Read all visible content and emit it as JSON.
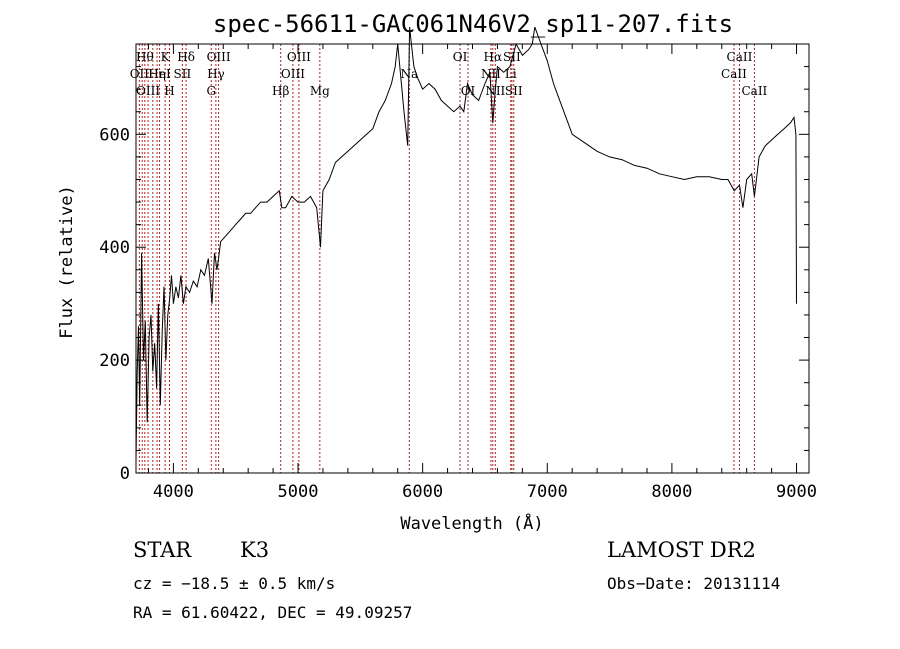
{
  "chart_data": {
    "type": "line",
    "title": "spec-56611-GAC061N46V2_sp11-207.fits",
    "xlabel": "Wavelength (Å)",
    "ylabel": "Flux (relative)",
    "xlim": [
      3700,
      9100
    ],
    "ylim": [
      0,
      760
    ],
    "xticks": [
      4000,
      5000,
      6000,
      7000,
      8000,
      9000
    ],
    "yticks": [
      0,
      200,
      400,
      600
    ],
    "grid": false,
    "series": [
      {
        "x": [
          3700,
          3710,
          3720,
          3730,
          3745,
          3760,
          3775,
          3790,
          3805,
          3820,
          3835,
          3850,
          3865,
          3880,
          3895,
          3910,
          3925,
          3940,
          3955,
          3970,
          3985,
          4000,
          4020,
          4040,
          4060,
          4080,
          4100,
          4130,
          4160,
          4190,
          4220,
          4250,
          4280,
          4310,
          4330,
          4350,
          4380,
          4420,
          4460,
          4500,
          4540,
          4580,
          4620,
          4660,
          4700,
          4750,
          4800,
          4850,
          4870,
          4900,
          4950,
          5000,
          5050,
          5100,
          5150,
          5180,
          5200,
          5250,
          5300,
          5350,
          5400,
          5450,
          5500,
          5550,
          5600,
          5650,
          5700,
          5750,
          5780,
          5800,
          5850,
          5880,
          5895,
          5910,
          5930,
          5960,
          6000,
          6050,
          6100,
          6150,
          6200,
          6250,
          6300,
          6330,
          6360,
          6400,
          6450,
          6500,
          6540,
          6563,
          6580,
          6600,
          6650,
          6700,
          6750,
          6800,
          6850,
          6880,
          6900,
          6950,
          7000,
          7050,
          7100,
          7150,
          7200,
          7300,
          7400,
          7500,
          7600,
          7700,
          7800,
          7900,
          8000,
          8100,
          8200,
          8300,
          8400,
          8450,
          8500,
          8542,
          8570,
          8600,
          8640,
          8662,
          8700,
          8750,
          8800,
          8850,
          8900,
          8950,
          8980,
          8995,
          9000
        ],
        "y": [
          20,
          180,
          260,
          120,
          390,
          200,
          270,
          90,
          240,
          280,
          180,
          230,
          150,
          300,
          120,
          250,
          330,
          200,
          280,
          310,
          350,
          300,
          330,
          310,
          350,
          300,
          330,
          320,
          340,
          330,
          360,
          350,
          380,
          300,
          390,
          360,
          410,
          420,
          430,
          440,
          450,
          460,
          460,
          470,
          480,
          480,
          490,
          500,
          470,
          470,
          490,
          480,
          480,
          490,
          470,
          400,
          500,
          520,
          550,
          560,
          570,
          580,
          590,
          600,
          610,
          640,
          660,
          690,
          720,
          760,
          640,
          580,
          790,
          760,
          720,
          700,
          680,
          690,
          680,
          660,
          650,
          640,
          650,
          640,
          690,
          670,
          660,
          690,
          710,
          620,
          670,
          720,
          710,
          720,
          760,
          740,
          750,
          760,
          790,
          760,
          730,
          690,
          660,
          630,
          600,
          585,
          570,
          560,
          555,
          545,
          540,
          530,
          525,
          520,
          525,
          525,
          520,
          520,
          500,
          510,
          470,
          520,
          530,
          490,
          560,
          580,
          590,
          600,
          610,
          620,
          630,
          600,
          300
        ]
      }
    ],
    "lines": [
      {
        "wl": 3727,
        "lbl": "OII",
        "row": 1
      },
      {
        "wl": 3750,
        "lbl": "",
        "row": -1
      },
      {
        "wl": 3771,
        "lbl": "Hθ",
        "row": 0
      },
      {
        "wl": 3797,
        "lbl": "OIII",
        "row": 2
      },
      {
        "wl": 3835,
        "lbl": "",
        "row": -1
      },
      {
        "wl": 3869,
        "lbl": "Hη",
        "row": 1
      },
      {
        "wl": 3889,
        "lbl": "HeI",
        "row": 1
      },
      {
        "wl": 3934,
        "lbl": "K",
        "row": 0
      },
      {
        "wl": 3969,
        "lbl": "H",
        "row": 2
      },
      {
        "wl": 4072,
        "lbl": "SII",
        "row": 1
      },
      {
        "wl": 4102,
        "lbl": "Hδ",
        "row": 0
      },
      {
        "wl": 4304,
        "lbl": "G",
        "row": 2
      },
      {
        "wl": 4341,
        "lbl": "Hγ",
        "row": 1
      },
      {
        "wl": 4363,
        "lbl": "OIII",
        "row": 0
      },
      {
        "wl": 4861,
        "lbl": "Hβ",
        "row": 2
      },
      {
        "wl": 4959,
        "lbl": "OIII",
        "row": 1
      },
      {
        "wl": 5007,
        "lbl": "OIII",
        "row": 0
      },
      {
        "wl": 5175,
        "lbl": "Mg",
        "row": 2
      },
      {
        "wl": 5893,
        "lbl": "Na",
        "row": 1
      },
      {
        "wl": 6300,
        "lbl": "OI",
        "row": 0
      },
      {
        "wl": 6364,
        "lbl": "OI",
        "row": 2
      },
      {
        "wl": 6548,
        "lbl": "NII",
        "row": 1
      },
      {
        "wl": 6563,
        "lbl": "Hα",
        "row": 0
      },
      {
        "wl": 6583,
        "lbl": "NII",
        "row": 2
      },
      {
        "wl": 6707,
        "lbl": "Li",
        "row": 1
      },
      {
        "wl": 6716,
        "lbl": "SII",
        "row": 0
      },
      {
        "wl": 6731,
        "lbl": "SII",
        "row": 2
      },
      {
        "wl": 8498,
        "lbl": "CaII",
        "row": 1
      },
      {
        "wl": 8542,
        "lbl": "CaII",
        "row": 0
      },
      {
        "wl": 8662,
        "lbl": "CaII",
        "row": 2
      }
    ]
  },
  "info": {
    "class": "STAR",
    "subclass": "K3",
    "survey": "LAMOST DR2",
    "cz": "cz = −18.5 ± 0.5 km/s",
    "obsdate": "Obs−Date: 20131114",
    "radec": "RA =  61.60422, DEC =  49.09257"
  }
}
